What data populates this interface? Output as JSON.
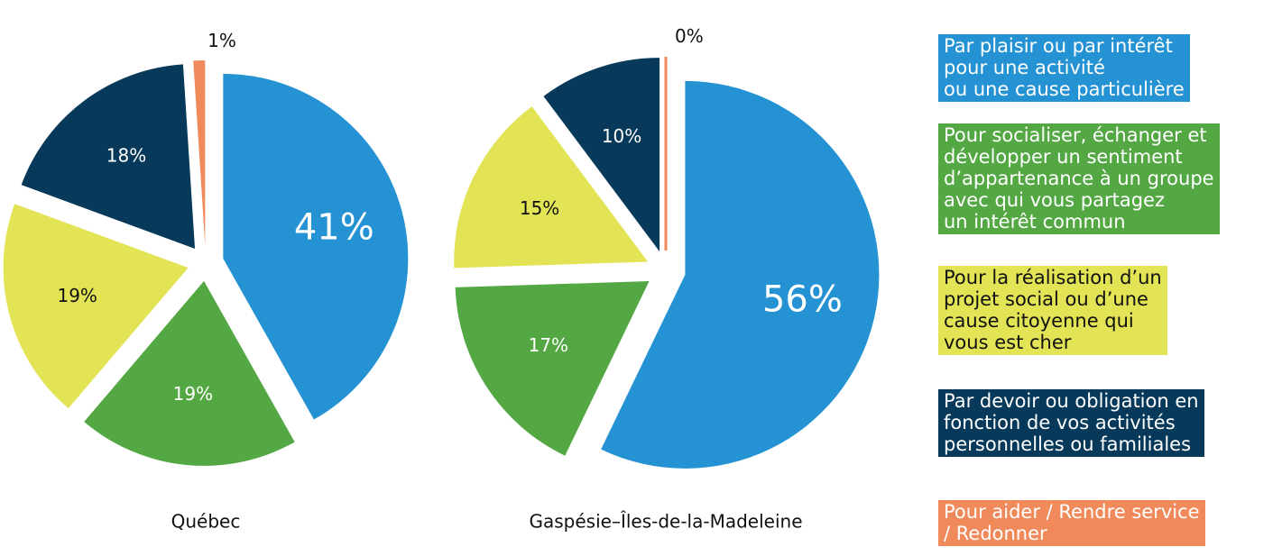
{
  "chart_data": {
    "type": "pie",
    "categories": [
      "Par plaisir ou par intérêt\npour une activité\nou une cause particulière",
      "Pour socialiser, échanger et\ndévelopper un sentiment\nd’appartenance à un groupe\navec qui vous partagez\nun intérêt commun",
      "Pour la réalisation d’un\nprojet social ou d’une\ncause citoyenne qui\nvous est cher",
      "Par devoir ou obligation en\nfonction de vos activités\npersonnelles ou familiales",
      "Pour aider / Rendre service\n/ Redonner"
    ],
    "colors": [
      "#2492d3",
      "#54a844",
      "#e2e455",
      "#07395a",
      "#f08a5b"
    ],
    "series": [
      {
        "name": "Québec",
        "values": [
          41,
          19,
          19,
          18,
          1
        ],
        "value_labels": [
          "41%",
          "19%",
          "19%",
          "18%",
          "1%"
        ]
      },
      {
        "name": "Gaspésie–Îles-de-la-Madeleine",
        "values": [
          56,
          17,
          15,
          10,
          0
        ],
        "value_labels": [
          "56%",
          "17%",
          "15%",
          "10%",
          "0%"
        ]
      }
    ]
  }
}
